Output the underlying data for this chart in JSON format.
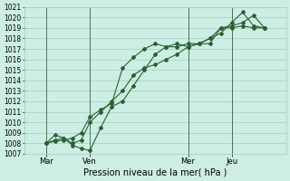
{
  "background_color": "#cceee4",
  "grid_color": "#aaccbb",
  "line_color": "#2a6030",
  "xlabel": "Pression niveau de la mer( hPa )",
  "ylim": [
    1007,
    1021
  ],
  "ytick_min": 1007,
  "ytick_max": 1020,
  "xlim": [
    0,
    120
  ],
  "xtick_positions": [
    10,
    30,
    75,
    95
  ],
  "xtick_labels": [
    "Mar",
    "Ven",
    "Mer",
    "Jeu"
  ],
  "vline_positions": [
    10,
    30,
    75,
    95
  ],
  "line1": {
    "x": [
      10,
      14,
      18,
      22,
      26,
      30,
      35,
      40,
      45,
      50,
      55,
      60,
      65,
      70,
      75,
      80,
      85,
      90,
      95,
      100,
      105,
      110
    ],
    "y": [
      1008,
      1008.3,
      1008.5,
      1008.0,
      1008.3,
      1010.0,
      1011.0,
      1012.0,
      1013.0,
      1014.5,
      1015.2,
      1015.5,
      1016.0,
      1016.5,
      1017.2,
      1017.5,
      1018.0,
      1019.0,
      1019.2,
      1019.5,
      1020.2,
      1019.0
    ]
  },
  "line2": {
    "x": [
      10,
      14,
      18,
      22,
      26,
      30,
      35,
      40,
      45,
      50,
      55,
      60,
      65,
      70,
      75,
      80,
      85,
      90,
      95,
      100,
      105,
      110
    ],
    "y": [
      1008,
      1008.8,
      1008.5,
      1007.8,
      1007.5,
      1007.3,
      1009.5,
      1011.5,
      1012.0,
      1013.5,
      1015.0,
      1016.5,
      1017.2,
      1017.5,
      1017.2,
      1017.5,
      1017.5,
      1019.0,
      1019.0,
      1019.2,
      1019.0,
      1019.0
    ]
  },
  "line3": {
    "x": [
      10,
      14,
      18,
      22,
      26,
      30,
      35,
      40,
      45,
      50,
      55,
      60,
      65,
      70,
      75,
      80,
      85,
      90,
      95,
      100,
      105,
      110
    ],
    "y": [
      1008,
      1008.2,
      1008.3,
      1008.5,
      1009.0,
      1010.5,
      1011.2,
      1011.8,
      1015.2,
      1016.2,
      1017.0,
      1017.5,
      1017.2,
      1017.2,
      1017.5,
      1017.5,
      1018.0,
      1018.5,
      1019.5,
      1020.5,
      1019.2,
      1019.0
    ]
  },
  "xlabel_fontsize": 7,
  "tick_fontsize": 5.5,
  "linewidth": 0.8,
  "markersize": 2.0
}
